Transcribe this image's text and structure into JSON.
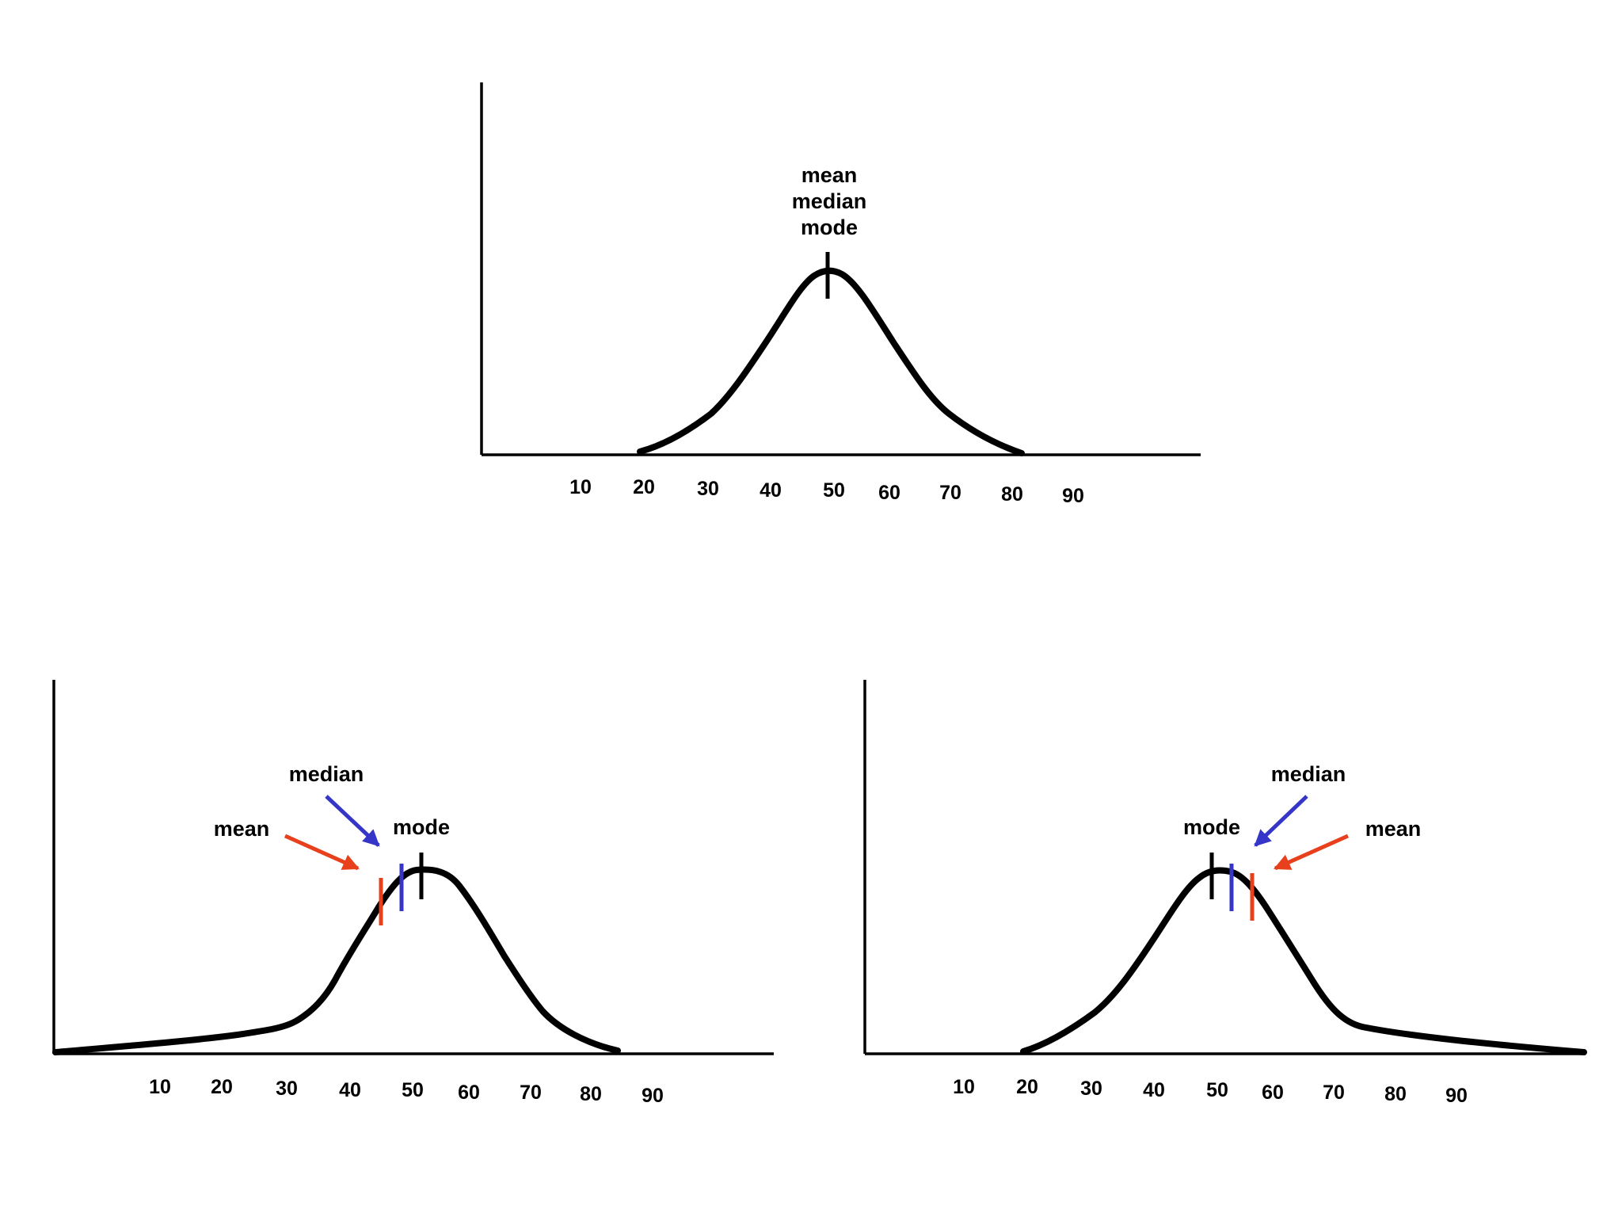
{
  "colors": {
    "curve": "#000000",
    "mean": "#e8401c",
    "median": "#3535c8",
    "mode": "#000000"
  },
  "panels": [
    {
      "id": "symmetric",
      "tick_labels": [
        "10",
        "20",
        "30",
        "40",
        "50",
        "60",
        "70",
        "80",
        "90"
      ],
      "label_lines": [
        "mean",
        "median",
        "mode"
      ]
    },
    {
      "id": "left-skewed",
      "tick_labels": [
        "10",
        "20",
        "30",
        "40",
        "50",
        "60",
        "70",
        "80",
        "90"
      ],
      "mean_label": "mean",
      "median_label": "median",
      "mode_label": "mode"
    },
    {
      "id": "right-skewed",
      "tick_labels": [
        "10",
        "20",
        "30",
        "40",
        "50",
        "60",
        "70",
        "80",
        "90"
      ],
      "mode_label": "mode",
      "median_label": "median",
      "mean_label": "mean"
    }
  ]
}
